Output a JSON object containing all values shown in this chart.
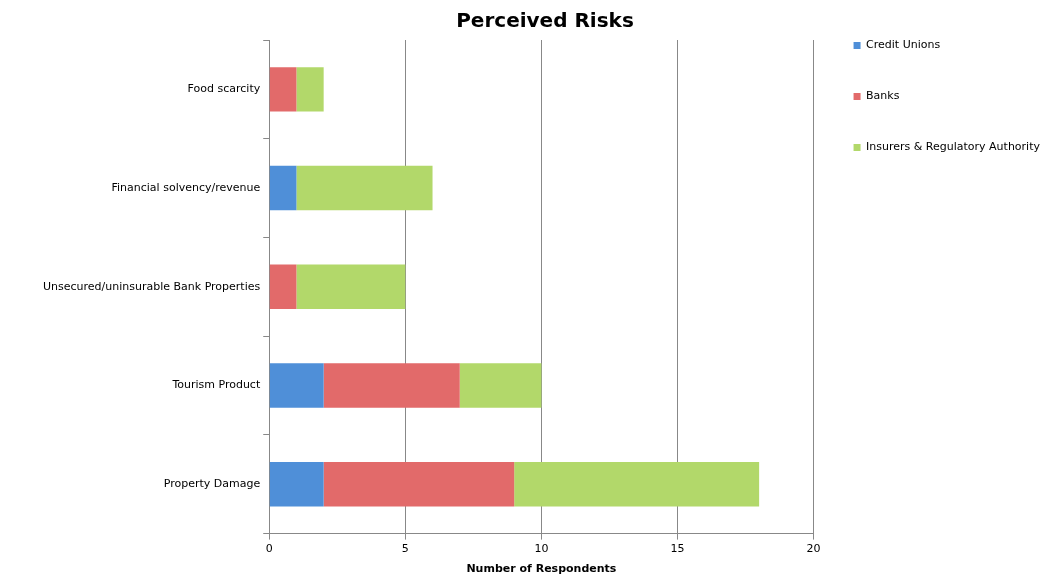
{
  "chart_data": {
    "type": "bar",
    "orientation": "horizontal",
    "stacked": true,
    "title": "Perceived Risks",
    "xlabel": "Number of Respondents",
    "categories": [
      "Food scarcity",
      "Financial solvency/revenue",
      "Unsecured/uninsurable Bank Properties",
      "Tourism Product",
      "Property Damage"
    ],
    "series": [
      {
        "name": "Credit Unions",
        "color": "#4f8fd8",
        "values": [
          0,
          1,
          0,
          2,
          2
        ]
      },
      {
        "name": "Banks",
        "color": "#e26a6a",
        "values": [
          1,
          0,
          1,
          5,
          7
        ]
      },
      {
        "name": "Insurers & Regulatory Authority",
        "color": "#b2d86a",
        "values": [
          1,
          5,
          4,
          3,
          9
        ]
      }
    ],
    "xlim": [
      0,
      20
    ],
    "xticks": [
      0,
      5,
      10,
      15,
      20
    ],
    "grid": "x",
    "legend": "right"
  }
}
